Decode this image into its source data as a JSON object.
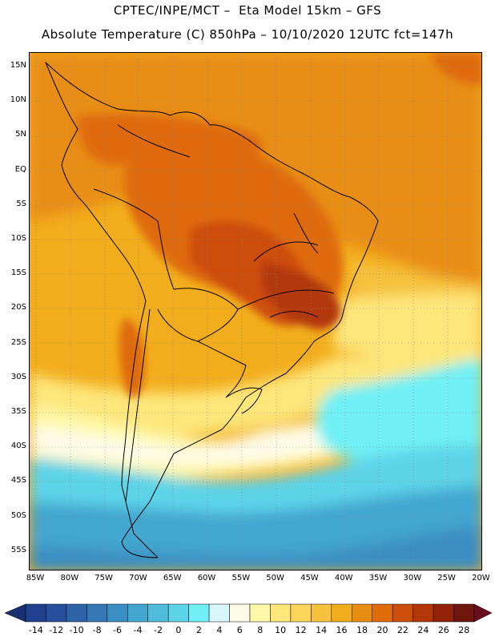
{
  "header": {
    "line1": "CPTEC/INPE/MCT –  Eta Model 15km – GFS",
    "line2": "Absolute Temperature (C) 850hPa – 10/10/2020 12UTC fct=147h"
  },
  "map": {
    "region": "South America",
    "lat_labels": [
      "15N",
      "10N",
      "5N",
      "EQ",
      "5S",
      "10S",
      "15S",
      "20S",
      "25S",
      "30S",
      "35S",
      "40S",
      "45S",
      "50S",
      "55S"
    ],
    "lon_labels": [
      "85W",
      "80W",
      "75W",
      "70W",
      "65W",
      "60W",
      "55W",
      "50W",
      "45W",
      "40W",
      "35W",
      "30W",
      "25W",
      "20W"
    ],
    "lat_range": [
      -58,
      16
    ],
    "lon_range": [
      -86,
      -20
    ]
  },
  "colorbar": {
    "labels": [
      "-14",
      "-12",
      "-10",
      "-8",
      "-6",
      "-4",
      "-2",
      "0",
      "2",
      "4",
      "6",
      "8",
      "10",
      "12",
      "14",
      "16",
      "18",
      "20",
      "22",
      "24",
      "26",
      "28"
    ],
    "colors": [
      "#1f3f8f",
      "#274f9c",
      "#2e63a8",
      "#3677b5",
      "#3b8ec2",
      "#43a6cf",
      "#4fbcdc",
      "#5dd3e8",
      "#70f0f5",
      "#d8f6fb",
      "#fffbe6",
      "#fef8a8",
      "#fde67a",
      "#fbd55a",
      "#f6c13c",
      "#f2ad1c",
      "#e88d12",
      "#df6b0a",
      "#cd4e08",
      "#b33708",
      "#942209",
      "#6f160d"
    ],
    "under_color": "#1a2f70",
    "over_color": "#6a0c20"
  }
}
